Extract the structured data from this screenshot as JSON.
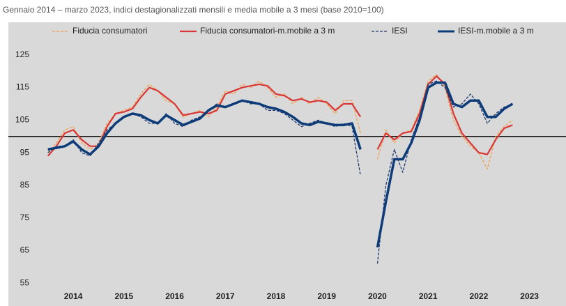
{
  "chart_data": {
    "type": "line",
    "title": "Gennaio 2014 – marzo 2023, indici destagionalizzati mensili e media mobile a 3 mesi (base 2010=100)",
    "x": [
      2014,
      2014.167,
      2014.333,
      2014.5,
      2014.667,
      2014.833,
      2015,
      2015.167,
      2015.333,
      2015.5,
      2015.667,
      2015.833,
      2016,
      2016.167,
      2016.333,
      2016.5,
      2016.667,
      2016.833,
      2017,
      2017.167,
      2017.333,
      2017.5,
      2017.667,
      2017.833,
      2018,
      2018.167,
      2018.333,
      2018.5,
      2018.667,
      2018.833,
      2019,
      2019.167,
      2019.333,
      2019.5,
      2019.667,
      2019.833,
      2020,
      2020.167,
      2020.333,
      2020.5,
      2020.667,
      2020.833,
      2021,
      2021.167,
      2021.333,
      2021.5,
      2021.667,
      2021.833,
      2022,
      2022.167,
      2022.333,
      2022.5,
      2022.667,
      2022.833,
      2023,
      2023.167
    ],
    "series": [
      {
        "name": "Fiducia consumatori",
        "color": "#f0a050",
        "style": "dashed",
        "width": 1.3,
        "values": [
          95,
          98,
          102,
          103,
          98,
          96,
          98,
          104,
          107,
          108,
          109,
          113,
          116,
          114,
          111,
          110,
          106,
          107,
          108,
          106,
          109,
          114,
          113,
          116,
          115,
          117,
          115,
          112,
          113,
          110,
          112,
          110,
          112,
          110,
          107,
          111,
          111,
          101,
          null,
          93,
          102,
          98,
          101,
          102,
          108,
          117,
          119,
          115,
          105,
          100,
          97,
          95,
          90,
          100,
          103,
          105
        ]
      },
      {
        "name": "Fiducia consumatori-m.mobile a 3 m",
        "color": "#d93636",
        "style": "solid",
        "width": 2.2,
        "values": [
          94,
          97,
          101,
          102,
          99,
          97,
          97,
          103,
          107,
          107.5,
          108.5,
          112,
          115,
          114,
          112,
          110,
          106.5,
          107,
          107.5,
          107,
          108,
          113,
          114,
          115,
          115.5,
          116,
          115.5,
          113,
          112.5,
          111,
          111.5,
          110.5,
          111,
          110.5,
          108,
          110,
          110,
          106,
          null,
          96,
          101,
          99,
          101,
          101.5,
          107,
          116,
          118.5,
          116,
          107,
          101,
          98,
          95,
          94.5,
          99,
          102.5,
          103.5
        ]
      },
      {
        "name": "IESI",
        "color": "#1f3a6e",
        "style": "dashed",
        "width": 1.3,
        "values": [
          95,
          97,
          97,
          99,
          95,
          94,
          98,
          102,
          104,
          106,
          107,
          106,
          104,
          104,
          107,
          104,
          103,
          105,
          106,
          108,
          110,
          109,
          110,
          111,
          110,
          110,
          108,
          108,
          107,
          105,
          103,
          104,
          105,
          104,
          103,
          104,
          103,
          88,
          null,
          61,
          85,
          96,
          89,
          99,
          106,
          116,
          117,
          115,
          109,
          110,
          113,
          110,
          104,
          107,
          109,
          110
        ]
      },
      {
        "name": "IESI-m.mobile a 3 m",
        "color": "#0d3c78",
        "style": "solid",
        "width": 3.5,
        "values": [
          96,
          96.5,
          97,
          98.5,
          96,
          94.5,
          97,
          101,
          104,
          106,
          107,
          106.5,
          105,
          104,
          106.5,
          105,
          103.5,
          104.5,
          105.5,
          108,
          109.5,
          109,
          110,
          111,
          110.5,
          110,
          109,
          108.5,
          107.5,
          106,
          104,
          103.5,
          104.5,
          104,
          103.5,
          103.5,
          104,
          96,
          null,
          66,
          80,
          93,
          93,
          98,
          105,
          115,
          116.5,
          116.5,
          110,
          109,
          111,
          111,
          106,
          106,
          108.5,
          110
        ]
      }
    ],
    "xlim": [
      2013.22,
      2024.22
    ],
    "xticks": [
      {
        "value": 2014.5,
        "label": "2014"
      },
      {
        "value": 2015.5,
        "label": "2015"
      },
      {
        "value": 2016.5,
        "label": "2016"
      },
      {
        "value": 2017.5,
        "label": "2017"
      },
      {
        "value": 2018.5,
        "label": "2018"
      },
      {
        "value": 2019.5,
        "label": "2019"
      },
      {
        "value": 2020.5,
        "label": "2020"
      },
      {
        "value": 2021.5,
        "label": "2021"
      },
      {
        "value": 2022.5,
        "label": "2022"
      },
      {
        "value": 2023.5,
        "label": "2023"
      }
    ],
    "ylim": [
      48,
      135
    ],
    "yticks": [
      55,
      65,
      75,
      85,
      95,
      105,
      115,
      125
    ],
    "hline": 100,
    "grid": false
  }
}
